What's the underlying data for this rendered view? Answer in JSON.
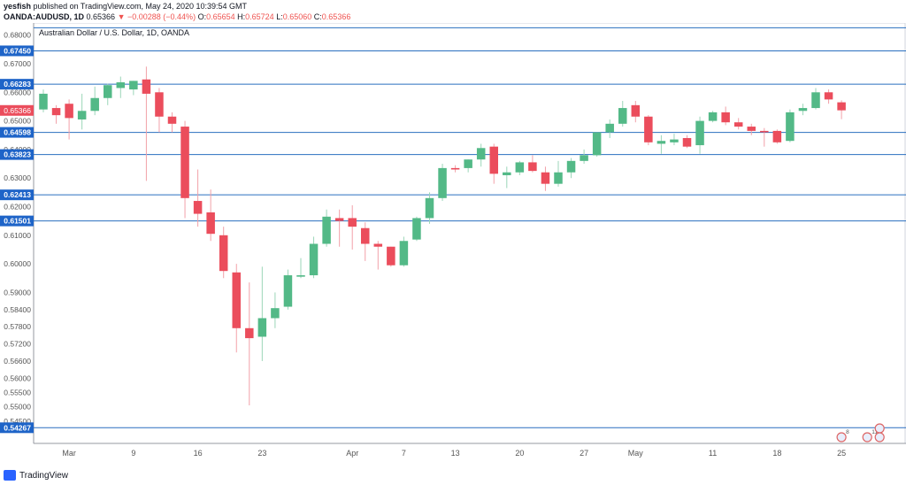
{
  "header": {
    "author": "yesfish",
    "published": "published on TradingView.com, May 24, 2020 10:39:54 GMT",
    "symbol": "OANDA:AUDUSD, 1D",
    "last": "0.65366",
    "change": "▼ −0.00288 (−0.44%)",
    "ohlc_o": "O:",
    "ohlc_o_val": "0.65654",
    "ohlc_h": "H:",
    "ohlc_h_val": "0.65724",
    "ohlc_l": "L:",
    "ohlc_l_val": "0.65060",
    "ohlc_c": "C:",
    "ohlc_c_val": "0.65366"
  },
  "footer": {
    "brand": "TradingView"
  },
  "colors": {
    "up": "#53b987",
    "down": "#eb4d5c",
    "hline": "#2a6fbf",
    "axis_text": "#555"
  },
  "chart_data": {
    "type": "candlestick",
    "title": "Australian Dollar / U.S. Dollar, 1D, OANDA",
    "xlabel": "",
    "ylabel": "",
    "ylim": [
      0.5375,
      0.683
    ],
    "grid": false,
    "y_ticks": [
      "0.68000",
      "0.67450",
      "0.67000",
      "0.66283",
      "0.66000",
      "0.65366",
      "0.65000",
      "0.64598",
      "0.64000",
      "0.63823",
      "0.63000",
      "0.62413",
      "0.62000",
      "0.61501",
      "0.61000",
      "0.60000",
      "0.59000",
      "0.58400",
      "0.57800",
      "0.57200",
      "0.56600",
      "0.56000",
      "0.55500",
      "0.55000",
      "0.54500",
      "0.54267"
    ],
    "x_ticks": [
      {
        "label": "Mar",
        "date": "2020-03-02"
      },
      {
        "label": "9",
        "date": "2020-03-09"
      },
      {
        "label": "16",
        "date": "2020-03-16"
      },
      {
        "label": "23",
        "date": "2020-03-23"
      },
      {
        "label": "Apr",
        "date": "2020-04-01"
      },
      {
        "label": "7",
        "date": "2020-04-07"
      },
      {
        "label": "13",
        "date": "2020-04-13"
      },
      {
        "label": "20",
        "date": "2020-04-20"
      },
      {
        "label": "27",
        "date": "2020-04-27"
      },
      {
        "label": "May",
        "date": "2020-05-01"
      },
      {
        "label": "11",
        "date": "2020-05-11"
      },
      {
        "label": "18",
        "date": "2020-05-18"
      },
      {
        "label": "25",
        "date": "2020-05-25"
      }
    ],
    "horizontal_lines": [
      "0.68256",
      "0.67450",
      "0.66283",
      "0.64598",
      "0.63823",
      "0.62413",
      "0.61501",
      "0.54267"
    ],
    "current_price": "0.65366",
    "event_badges": [
      {
        "date": "2020-05-25",
        "count": "8"
      },
      {
        "date": "2020-05-27",
        "count": "11"
      }
    ],
    "candles": [
      {
        "date": "2020-02-27",
        "o": 0.654,
        "h": 0.661,
        "l": 0.653,
        "c": 0.6595
      },
      {
        "date": "2020-02-28",
        "o": 0.6545,
        "h": 0.6555,
        "l": 0.649,
        "c": 0.652
      },
      {
        "date": "2020-03-02",
        "o": 0.656,
        "h": 0.6575,
        "l": 0.6435,
        "c": 0.651
      },
      {
        "date": "2020-03-03",
        "o": 0.6505,
        "h": 0.6595,
        "l": 0.647,
        "c": 0.6535
      },
      {
        "date": "2020-03-04",
        "o": 0.6535,
        "h": 0.662,
        "l": 0.652,
        "c": 0.658
      },
      {
        "date": "2020-03-05",
        "o": 0.658,
        "h": 0.663,
        "l": 0.6555,
        "c": 0.6625
      },
      {
        "date": "2020-03-06",
        "o": 0.6615,
        "h": 0.6655,
        "l": 0.658,
        "c": 0.6635
      },
      {
        "date": "2020-03-09",
        "o": 0.661,
        "h": 0.664,
        "l": 0.659,
        "c": 0.664
      },
      {
        "date": "2020-03-10",
        "o": 0.6645,
        "h": 0.669,
        "l": 0.629,
        "c": 0.6595
      },
      {
        "date": "2020-03-11",
        "o": 0.66,
        "h": 0.6615,
        "l": 0.646,
        "c": 0.6515
      },
      {
        "date": "2020-03-12",
        "o": 0.6515,
        "h": 0.653,
        "l": 0.646,
        "c": 0.649
      },
      {
        "date": "2020-03-13",
        "o": 0.648,
        "h": 0.65,
        "l": 0.616,
        "c": 0.623
      },
      {
        "date": "2020-03-16",
        "o": 0.622,
        "h": 0.633,
        "l": 0.613,
        "c": 0.6175
      },
      {
        "date": "2020-03-17",
        "o": 0.618,
        "h": 0.626,
        "l": 0.608,
        "c": 0.6105
      },
      {
        "date": "2020-03-18",
        "o": 0.61,
        "h": 0.613,
        "l": 0.595,
        "c": 0.5975
      },
      {
        "date": "2020-03-19",
        "o": 0.597,
        "h": 0.6,
        "l": 0.569,
        "c": 0.5775
      },
      {
        "date": "2020-03-20",
        "o": 0.5775,
        "h": 0.5935,
        "l": 0.5505,
        "c": 0.574
      },
      {
        "date": "2020-03-23",
        "o": 0.5745,
        "h": 0.599,
        "l": 0.566,
        "c": 0.581
      },
      {
        "date": "2020-03-24",
        "o": 0.581,
        "h": 0.59,
        "l": 0.5775,
        "c": 0.5845
      },
      {
        "date": "2020-03-25",
        "o": 0.585,
        "h": 0.598,
        "l": 0.584,
        "c": 0.596
      },
      {
        "date": "2020-03-26",
        "o": 0.5955,
        "h": 0.602,
        "l": 0.595,
        "c": 0.596
      },
      {
        "date": "2020-03-27",
        "o": 0.596,
        "h": 0.6095,
        "l": 0.595,
        "c": 0.607
      },
      {
        "date": "2020-03-30",
        "o": 0.607,
        "h": 0.619,
        "l": 0.606,
        "c": 0.6165
      },
      {
        "date": "2020-03-31",
        "o": 0.616,
        "h": 0.619,
        "l": 0.606,
        "c": 0.615
      },
      {
        "date": "2020-04-01",
        "o": 0.616,
        "h": 0.6205,
        "l": 0.605,
        "c": 0.613
      },
      {
        "date": "2020-04-02",
        "o": 0.6125,
        "h": 0.6145,
        "l": 0.601,
        "c": 0.607
      },
      {
        "date": "2020-04-03",
        "o": 0.607,
        "h": 0.608,
        "l": 0.598,
        "c": 0.606
      },
      {
        "date": "2020-04-06",
        "o": 0.606,
        "h": 0.606,
        "l": 0.599,
        "c": 0.5995
      },
      {
        "date": "2020-04-07",
        "o": 0.5995,
        "h": 0.6095,
        "l": 0.599,
        "c": 0.608
      },
      {
        "date": "2020-04-08",
        "o": 0.6085,
        "h": 0.6165,
        "l": 0.608,
        "c": 0.616
      },
      {
        "date": "2020-04-09",
        "o": 0.616,
        "h": 0.625,
        "l": 0.614,
        "c": 0.623
      },
      {
        "date": "2020-04-10",
        "o": 0.623,
        "h": 0.635,
        "l": 0.622,
        "c": 0.6335
      },
      {
        "date": "2020-04-13",
        "o": 0.6335,
        "h": 0.6345,
        "l": 0.632,
        "c": 0.633
      },
      {
        "date": "2020-04-14",
        "o": 0.6335,
        "h": 0.6365,
        "l": 0.632,
        "c": 0.6365
      },
      {
        "date": "2020-04-15",
        "o": 0.6365,
        "h": 0.642,
        "l": 0.634,
        "c": 0.6405
      },
      {
        "date": "2020-04-16",
        "o": 0.641,
        "h": 0.642,
        "l": 0.628,
        "c": 0.6315
      },
      {
        "date": "2020-04-17",
        "o": 0.631,
        "h": 0.634,
        "l": 0.6265,
        "c": 0.632
      },
      {
        "date": "2020-04-20",
        "o": 0.632,
        "h": 0.636,
        "l": 0.631,
        "c": 0.6355
      },
      {
        "date": "2020-04-21",
        "o": 0.6355,
        "h": 0.638,
        "l": 0.632,
        "c": 0.6325
      },
      {
        "date": "2020-04-22",
        "o": 0.632,
        "h": 0.634,
        "l": 0.6255,
        "c": 0.628
      },
      {
        "date": "2020-04-23",
        "o": 0.628,
        "h": 0.636,
        "l": 0.627,
        "c": 0.632
      },
      {
        "date": "2020-04-24",
        "o": 0.632,
        "h": 0.637,
        "l": 0.63,
        "c": 0.636
      },
      {
        "date": "2020-04-27",
        "o": 0.636,
        "h": 0.64,
        "l": 0.635,
        "c": 0.638
      },
      {
        "date": "2020-04-28",
        "o": 0.638,
        "h": 0.646,
        "l": 0.6375,
        "c": 0.646
      },
      {
        "date": "2020-04-29",
        "o": 0.646,
        "h": 0.6505,
        "l": 0.644,
        "c": 0.649
      },
      {
        "date": "2020-04-30",
        "o": 0.649,
        "h": 0.657,
        "l": 0.648,
        "c": 0.6545
      },
      {
        "date": "2020-05-01",
        "o": 0.6555,
        "h": 0.657,
        "l": 0.6495,
        "c": 0.6515
      },
      {
        "date": "2020-05-04",
        "o": 0.6515,
        "h": 0.652,
        "l": 0.6415,
        "c": 0.6425
      },
      {
        "date": "2020-05-05",
        "o": 0.642,
        "h": 0.645,
        "l": 0.6385,
        "c": 0.643
      },
      {
        "date": "2020-05-06",
        "o": 0.6425,
        "h": 0.6455,
        "l": 0.6415,
        "c": 0.6435
      },
      {
        "date": "2020-05-07",
        "o": 0.644,
        "h": 0.645,
        "l": 0.6405,
        "c": 0.641
      },
      {
        "date": "2020-05-08",
        "o": 0.6415,
        "h": 0.6515,
        "l": 0.6385,
        "c": 0.65
      },
      {
        "date": "2020-05-11",
        "o": 0.65,
        "h": 0.6535,
        "l": 0.6495,
        "c": 0.653
      },
      {
        "date": "2020-05-12",
        "o": 0.653,
        "h": 0.655,
        "l": 0.6485,
        "c": 0.6495
      },
      {
        "date": "2020-05-13",
        "o": 0.6495,
        "h": 0.651,
        "l": 0.647,
        "c": 0.648
      },
      {
        "date": "2020-05-14",
        "o": 0.648,
        "h": 0.649,
        "l": 0.645,
        "c": 0.6465
      },
      {
        "date": "2020-05-15",
        "o": 0.6465,
        "h": 0.6475,
        "l": 0.641,
        "c": 0.646
      },
      {
        "date": "2020-05-18",
        "o": 0.6465,
        "h": 0.647,
        "l": 0.642,
        "c": 0.6425
      },
      {
        "date": "2020-05-19",
        "o": 0.643,
        "h": 0.654,
        "l": 0.6425,
        "c": 0.653
      },
      {
        "date": "2020-05-20",
        "o": 0.6535,
        "h": 0.656,
        "l": 0.652,
        "c": 0.6545
      },
      {
        "date": "2020-05-21",
        "o": 0.6545,
        "h": 0.6615,
        "l": 0.654,
        "c": 0.66
      },
      {
        "date": "2020-05-22",
        "o": 0.66,
        "h": 0.661,
        "l": 0.656,
        "c": 0.6575
      },
      {
        "date": "2020-05-25",
        "o": 0.6565,
        "h": 0.6572,
        "l": 0.6506,
        "c": 0.6537
      }
    ]
  }
}
